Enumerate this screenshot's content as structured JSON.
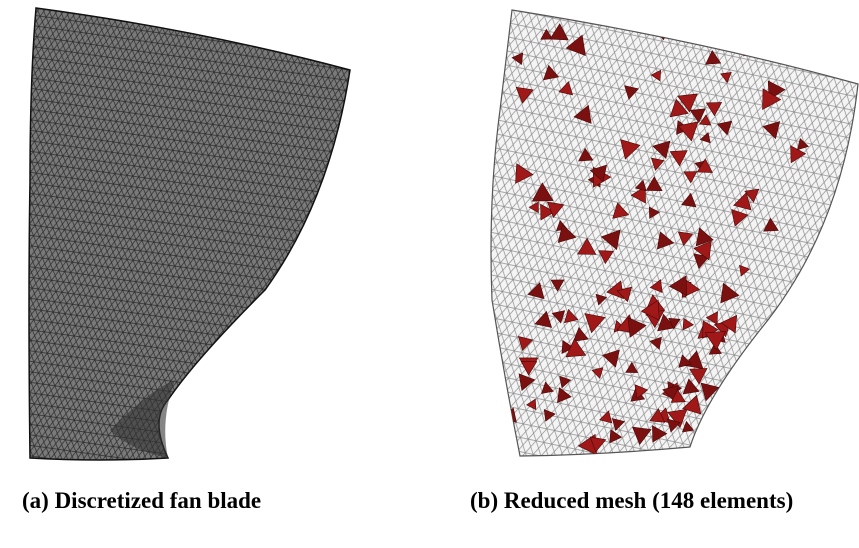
{
  "figure": {
    "panels": [
      {
        "caption": "(a) Discretized fan blade"
      },
      {
        "caption": "(b) Reduced mesh (148 elements)"
      }
    ]
  }
}
